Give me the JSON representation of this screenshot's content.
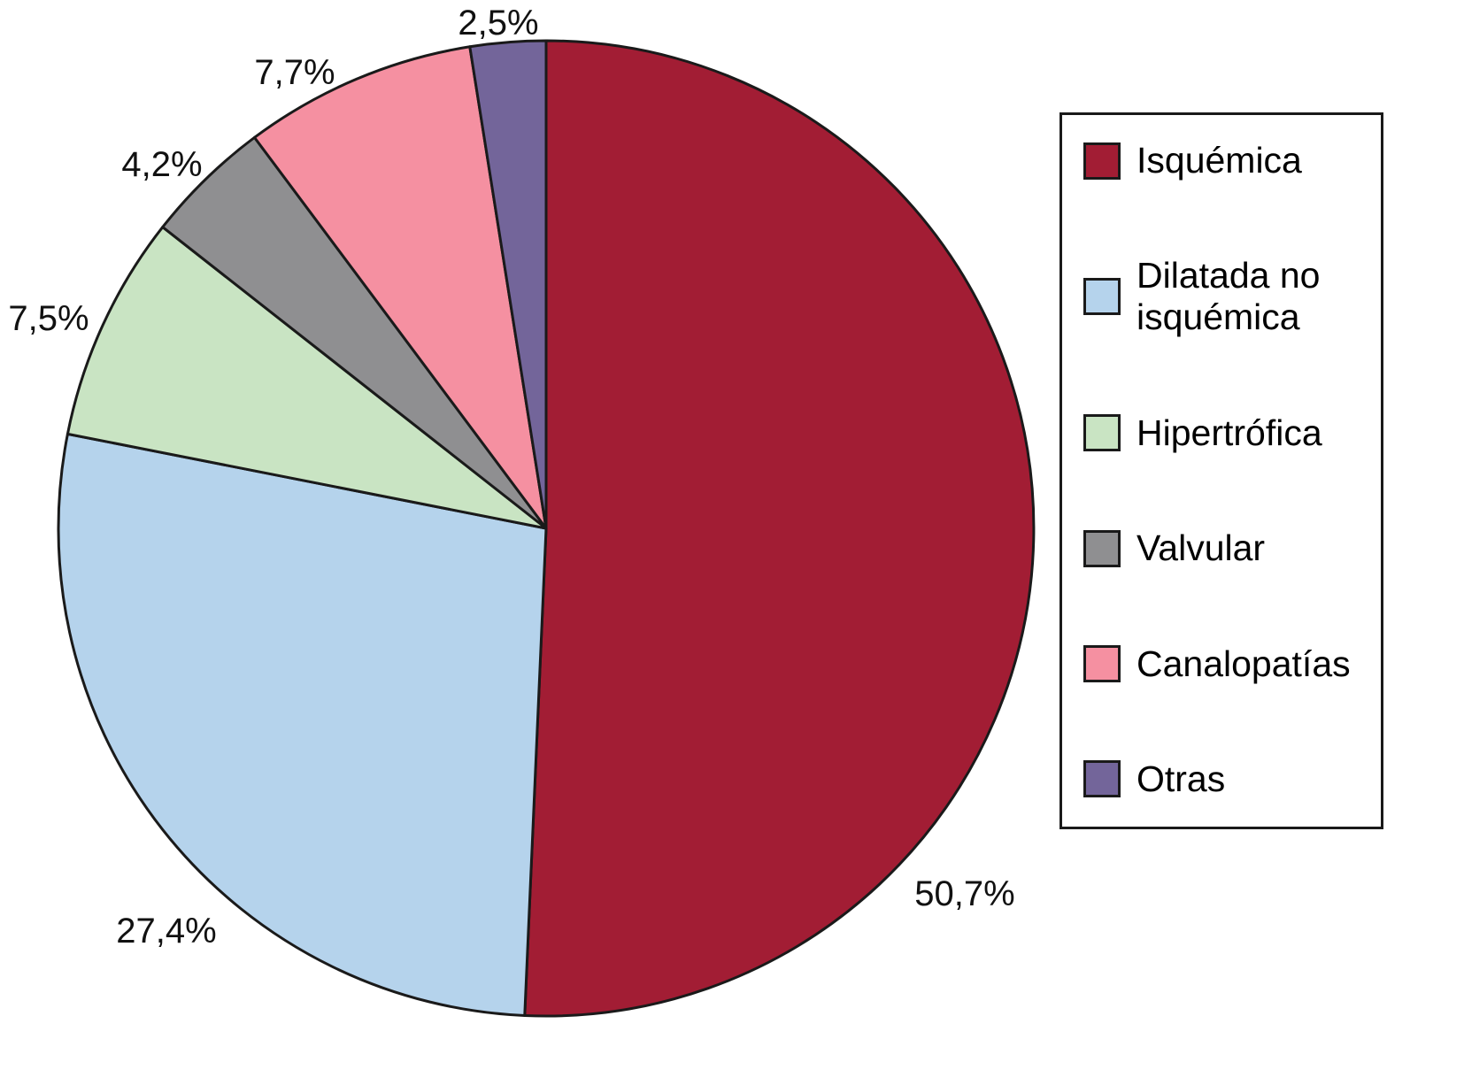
{
  "chart_data": {
    "type": "pie",
    "title": "",
    "legend_position": "right",
    "start_angle_deg": 0,
    "direction": "clockwise",
    "grid": false,
    "slices": [
      {
        "name": "Isquémica",
        "value": 50.7,
        "label": "50,7%",
        "color": "#A21D34"
      },
      {
        "name": "Dilatada no isquémica",
        "value": 27.4,
        "label": "27,4%",
        "color": "#B5D3EC"
      },
      {
        "name": "Hipertrófica",
        "value": 7.5,
        "label": "7,5%",
        "color": "#C9E4C3"
      },
      {
        "name": "Valvular",
        "value": 4.2,
        "label": "4,2%",
        "color": "#8F8F91"
      },
      {
        "name": "Canalopatías",
        "value": 7.7,
        "label": "7,7%",
        "color": "#F590A1"
      },
      {
        "name": "Otras",
        "value": 2.5,
        "label": "2,5%",
        "color": "#73659A"
      }
    ],
    "stroke_color": "#1a1a1a"
  }
}
